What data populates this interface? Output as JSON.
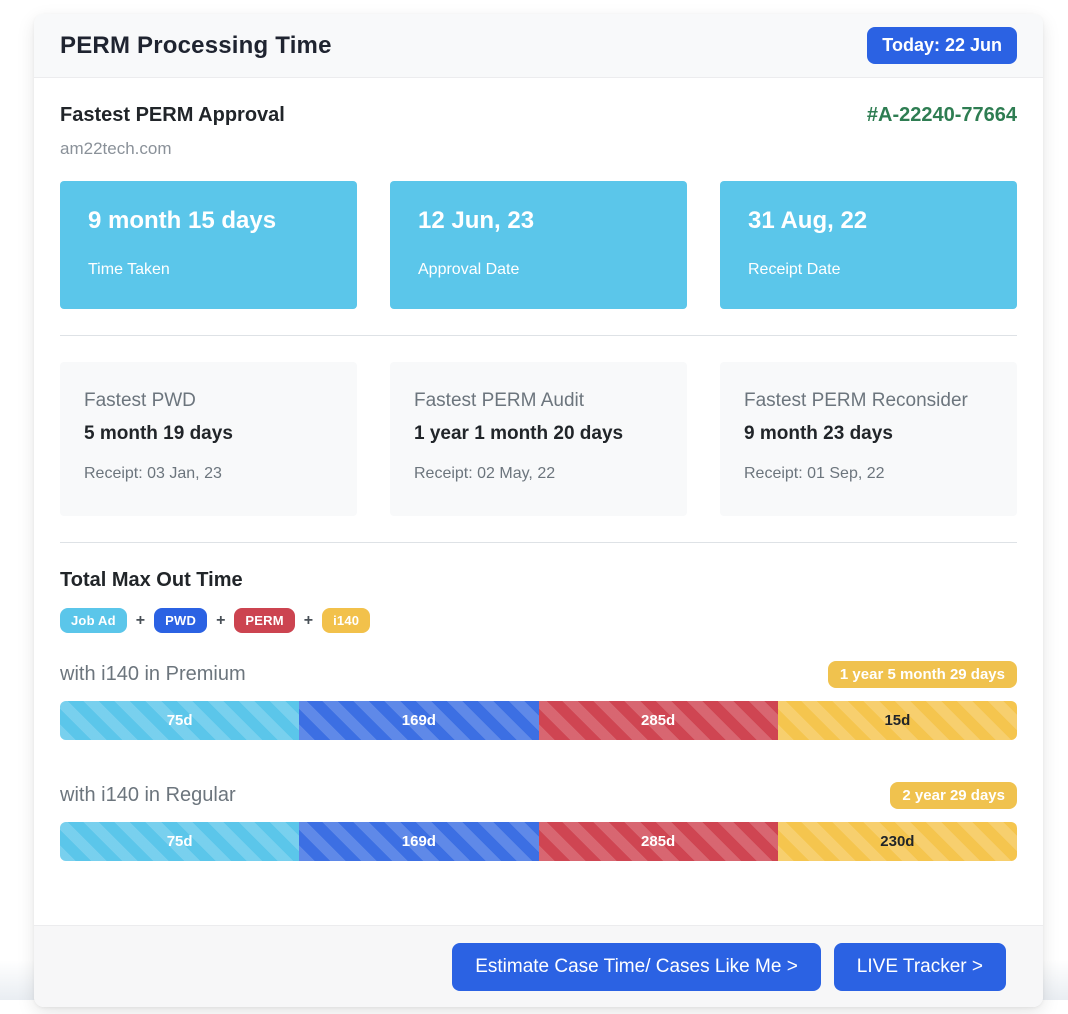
{
  "header": {
    "title": "PERM Processing Time",
    "today_button": "Today: 22 Jun"
  },
  "approval": {
    "title": "Fastest PERM Approval",
    "case_number": "#A-22240-77664",
    "source": "am22tech.com",
    "stats": [
      {
        "value": "9 month 15 days",
        "label": "Time Taken"
      },
      {
        "value": "12 Jun, 23",
        "label": "Approval Date"
      },
      {
        "value": "31 Aug, 22",
        "label": "Receipt Date"
      }
    ]
  },
  "fastest": [
    {
      "title": "Fastest PWD",
      "value": "5 month 19 days",
      "receipt": "Receipt: 03 Jan, 23"
    },
    {
      "title": "Fastest PERM Audit",
      "value": "1 year 1 month 20 days",
      "receipt": "Receipt: 02 May, 22"
    },
    {
      "title": "Fastest PERM Reconsider",
      "value": "9 month 23 days",
      "receipt": "Receipt: 01 Sep, 22"
    }
  ],
  "max_out": {
    "title": "Total Max Out Time",
    "plus": "+",
    "legend": [
      {
        "label": "Job Ad",
        "color": "#5bc6ea"
      },
      {
        "label": "PWD",
        "color": "#2b62e3"
      },
      {
        "label": "PERM",
        "color": "#cc4450"
      },
      {
        "label": "i140",
        "color": "#f2c14b"
      }
    ],
    "bars": [
      {
        "heading": "with i140 in Premium",
        "total_badge": "1 year 5 month 29 days",
        "segments": [
          {
            "label": "75d",
            "days": 75,
            "color": "#5bc6ea"
          },
          {
            "label": "169d",
            "days": 169,
            "color": "#3c6fe3"
          },
          {
            "label": "285d",
            "days": 285,
            "color": "#cf4552"
          },
          {
            "label": "15d",
            "days": 15,
            "color": "#f5c54e"
          }
        ]
      },
      {
        "heading": "with i140 in Regular",
        "total_badge": "2 year 29 days",
        "segments": [
          {
            "label": "75d",
            "days": 75,
            "color": "#5bc6ea"
          },
          {
            "label": "169d",
            "days": 169,
            "color": "#3c6fe3"
          },
          {
            "label": "285d",
            "days": 285,
            "color": "#cf4552"
          },
          {
            "label": "230d",
            "days": 230,
            "color": "#f5c54e"
          }
        ]
      }
    ]
  },
  "footer": {
    "estimate_button": "Estimate Case Time/ Cases Like Me >",
    "live_tracker_button": "LIVE Tracker >"
  },
  "colors": {
    "accent_blue": "#2b62e3",
    "cyan": "#5bc6ea",
    "red": "#cc4450",
    "yellow_badge": "#f0c24e",
    "case_number_green": "#2e7d52",
    "header_bg": "#f8f9fa"
  }
}
